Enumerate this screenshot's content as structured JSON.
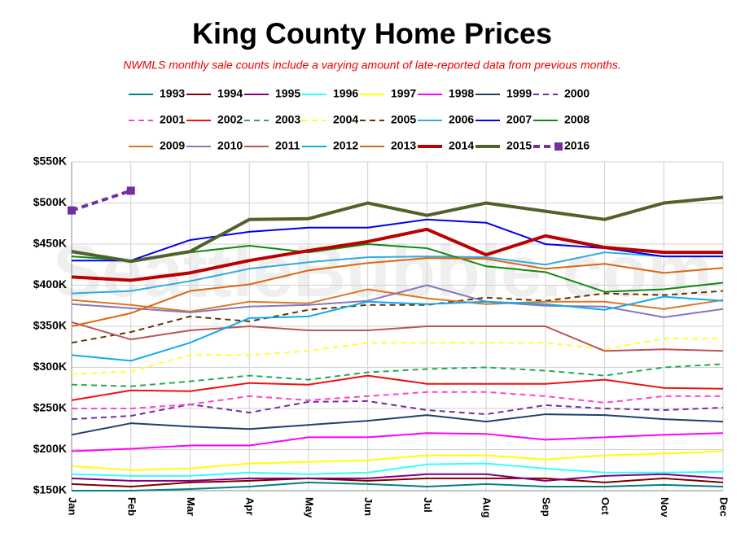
{
  "chart_data": {
    "type": "line",
    "title": "King County Home Prices",
    "subtitle": "NWMLS monthly sale counts include a varying amount of late-reported  data from previous months.",
    "watermark": "SeattleBubble.com",
    "categories": [
      "Jan",
      "Feb",
      "Mar",
      "Apr",
      "May",
      "Jun",
      "Jul",
      "Aug",
      "Sep",
      "Oct",
      "Nov",
      "Dec"
    ],
    "ylim": [
      150000,
      550000
    ],
    "yticks": [
      {
        "value": 150000,
        "label": "$150K"
      },
      {
        "value": 200000,
        "label": "$200K"
      },
      {
        "value": 250000,
        "label": "$250K"
      },
      {
        "value": 300000,
        "label": "$300K"
      },
      {
        "value": 350000,
        "label": "$350K"
      },
      {
        "value": 400000,
        "label": "$400K"
      },
      {
        "value": 450000,
        "label": "$450K"
      },
      {
        "value": 500000,
        "label": "$500K"
      },
      {
        "value": 550000,
        "label": "$550K"
      }
    ],
    "grid": true,
    "series": [
      {
        "name": "1993",
        "color": "#008080",
        "values": [
          150000,
          150000,
          152000,
          155000,
          160000,
          158000,
          155000,
          158000,
          155000,
          155000,
          157000,
          155000
        ]
      },
      {
        "name": "1994",
        "color": "#800000",
        "values": [
          158000,
          155000,
          160000,
          162000,
          165000,
          162000,
          165000,
          165000,
          165000,
          160000,
          165000,
          160000
        ]
      },
      {
        "name": "1995",
        "color": "#800080",
        "values": [
          165000,
          162000,
          162000,
          165000,
          165000,
          165000,
          170000,
          170000,
          162000,
          168000,
          170000,
          165000
        ]
      },
      {
        "name": "1996",
        "color": "#33ffff",
        "values": [
          170000,
          168000,
          168000,
          172000,
          170000,
          172000,
          182000,
          183000,
          177000,
          172000,
          172000,
          173000
        ]
      },
      {
        "name": "1997",
        "color": "#ffff00",
        "values": [
          180000,
          175000,
          177000,
          183000,
          185000,
          187000,
          193000,
          193000,
          188000,
          193000,
          195000,
          198000
        ]
      },
      {
        "name": "1998",
        "color": "#ff00ff",
        "values": [
          198000,
          201000,
          205000,
          205000,
          215000,
          215000,
          220000,
          219000,
          212000,
          215000,
          218000,
          220000
        ]
      },
      {
        "name": "1999",
        "color": "#1f3f6f",
        "values": [
          218000,
          232000,
          228000,
          225000,
          230000,
          235000,
          242000,
          234000,
          243000,
          242000,
          237000,
          234000
        ]
      },
      {
        "name": "2000",
        "color": "#7030a0",
        "dashed": true,
        "values": [
          237000,
          241000,
          255000,
          245000,
          258000,
          259000,
          248000,
          243000,
          254000,
          250000,
          248000,
          251000
        ]
      },
      {
        "name": "2001",
        "color": "#ff44cc",
        "dashed": true,
        "values": [
          250000,
          250000,
          255000,
          265000,
          260000,
          265000,
          270000,
          270000,
          265000,
          257000,
          265000,
          265000
        ]
      },
      {
        "name": "2002",
        "color": "#ee1111",
        "values": [
          260000,
          272000,
          271000,
          281000,
          279000,
          290000,
          280000,
          280000,
          280000,
          285000,
          275000,
          274000
        ]
      },
      {
        "name": "2003",
        "color": "#22aa55",
        "dashed": true,
        "values": [
          279000,
          277000,
          283000,
          290000,
          285000,
          294000,
          298000,
          300000,
          296000,
          290000,
          300000,
          304000
        ]
      },
      {
        "name": "2004",
        "color": "#ffff33",
        "dashed": true,
        "values": [
          292000,
          295000,
          315000,
          315000,
          320000,
          330000,
          330000,
          330000,
          330000,
          322000,
          335000,
          335000
        ]
      },
      {
        "name": "2005",
        "color": "#663300",
        "dashed": true,
        "values": [
          330000,
          343000,
          362000,
          356000,
          370000,
          376000,
          376000,
          385000,
          381000,
          390000,
          388000,
          393000
        ]
      },
      {
        "name": "2006",
        "color": "#33aadd",
        "values": [
          390000,
          393000,
          405000,
          420000,
          428000,
          434000,
          435000,
          434000,
          425000,
          440000,
          435000,
          435000
        ]
      },
      {
        "name": "2007",
        "color": "#0000ee",
        "values": [
          430000,
          430000,
          455000,
          465000,
          470000,
          470000,
          480000,
          476000,
          450000,
          445000,
          435000,
          435000
        ]
      },
      {
        "name": "2008",
        "color": "#118811",
        "values": [
          435000,
          430000,
          440000,
          448000,
          440000,
          450000,
          445000,
          423000,
          416000,
          392000,
          395000,
          403000
        ]
      },
      {
        "name": "2009",
        "color": "#dd7722",
        "values": [
          382000,
          376000,
          368000,
          380000,
          378000,
          395000,
          384000,
          377000,
          380000,
          380000,
          371000,
          382000
        ]
      },
      {
        "name": "2010",
        "color": "#8877bb",
        "values": [
          377000,
          372000,
          367000,
          374000,
          376000,
          381000,
          400000,
          380000,
          375000,
          374000,
          361000,
          371000
        ]
      },
      {
        "name": "2011",
        "color": "#bb5555",
        "values": [
          355000,
          334000,
          345000,
          350000,
          345000,
          345000,
          350000,
          350000,
          350000,
          320000,
          322000,
          320000
        ]
      },
      {
        "name": "2012",
        "color": "#11aaee",
        "values": [
          315000,
          308000,
          330000,
          360000,
          362000,
          380000,
          377000,
          380000,
          377000,
          370000,
          386000,
          381000
        ]
      },
      {
        "name": "2013",
        "color": "#dd6611",
        "values": [
          350000,
          366000,
          393000,
          401000,
          418000,
          427000,
          433000,
          432000,
          420000,
          426000,
          415000,
          421000
        ]
      },
      {
        "name": "2014",
        "color": "#bb0000",
        "thick": true,
        "values": [
          410000,
          406000,
          415000,
          430000,
          442000,
          453000,
          468000,
          437000,
          460000,
          446000,
          440000,
          440000
        ]
      },
      {
        "name": "2015",
        "color": "#4f6228",
        "thick": true,
        "values": [
          441000,
          429000,
          441000,
          480000,
          481000,
          500000,
          485000,
          500000,
          490000,
          480000,
          500000,
          507000
        ]
      },
      {
        "name": "2016",
        "color": "#7030a0",
        "dashed": true,
        "thick": true,
        "marker": "square",
        "values": [
          491000,
          515000,
          null,
          null,
          null,
          null,
          null,
          null,
          null,
          null,
          null,
          null
        ]
      }
    ]
  }
}
